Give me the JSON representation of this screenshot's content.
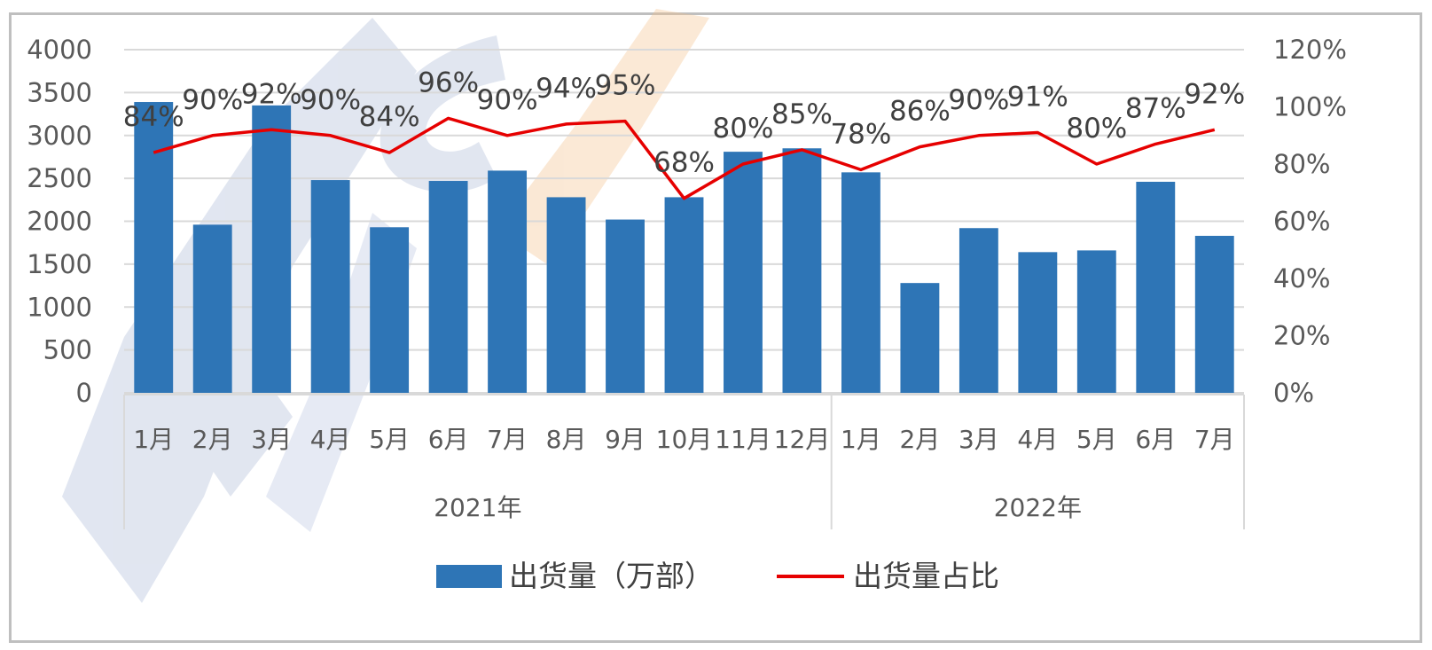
{
  "chart_data": {
    "type": "bar",
    "categories": [
      "1月",
      "2月",
      "3月",
      "4月",
      "5月",
      "6月",
      "7月",
      "8月",
      "9月",
      "10月",
      "11月",
      "12月",
      "1月",
      "2月",
      "3月",
      "4月",
      "5月",
      "6月",
      "7月"
    ],
    "groups": [
      {
        "label": "2021年",
        "count": 12
      },
      {
        "label": "2022年",
        "count": 7
      }
    ],
    "series": [
      {
        "name": "出货量（万部）",
        "type": "bar",
        "axis": "left",
        "color": "#2e75b6",
        "values": [
          3390,
          1960,
          3350,
          2480,
          1930,
          2470,
          2590,
          2280,
          2020,
          2280,
          2810,
          2850,
          2570,
          1280,
          1920,
          1640,
          1660,
          2460,
          1830
        ]
      },
      {
        "name": "出货量占比",
        "type": "line",
        "axis": "right",
        "color": "#e60000",
        "values": [
          84,
          90,
          92,
          90,
          84,
          96,
          90,
          94,
          95,
          68,
          80,
          85,
          78,
          86,
          90,
          91,
          80,
          87,
          92
        ],
        "labels": [
          "84%",
          "90%",
          "92%",
          "90%",
          "84%",
          "96%",
          "90%",
          "94%",
          "95%",
          "68%",
          "80%",
          "85%",
          "78%",
          "86%",
          "90%",
          "91%",
          "80%",
          "87%",
          "92%"
        ]
      }
    ],
    "y_left": {
      "min": 0,
      "max": 4000,
      "ticks": [
        "0",
        "500",
        "1000",
        "1500",
        "2000",
        "2500",
        "3000",
        "3500",
        "4000"
      ]
    },
    "y_right": {
      "min": 0,
      "max": 120,
      "ticks": [
        "0%",
        "20%",
        "40%",
        "60%",
        "80%",
        "100%",
        "120%"
      ]
    },
    "grid": true,
    "legend_position": "bottom"
  },
  "legend": {
    "bar_label": "出货量（万部）",
    "line_label": "出货量占比"
  }
}
